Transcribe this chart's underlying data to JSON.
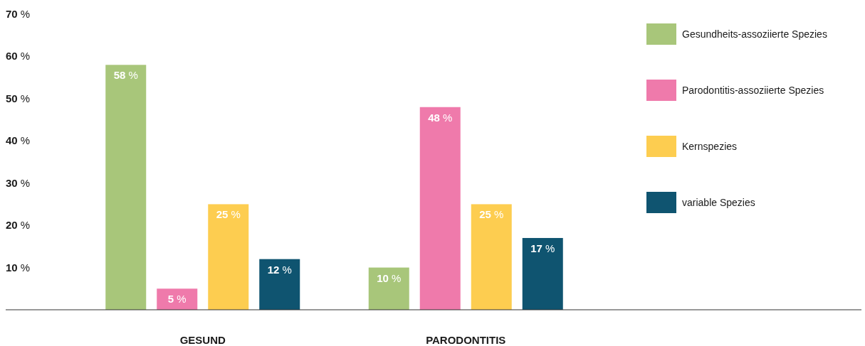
{
  "chart_data": {
    "type": "bar",
    "categories": [
      "GESUND",
      "PARODONTITIS"
    ],
    "series": [
      {
        "name": "Gesundheits-assoziierte Spezies",
        "color": "#a8c67a",
        "values": [
          58,
          10
        ],
        "value_labels": [
          "58 %",
          "10 %"
        ]
      },
      {
        "name": "Parodontitis-assoziierte Spezies",
        "color": "#ef7aab",
        "values": [
          5,
          48
        ],
        "value_labels": [
          "5 %",
          "48 %"
        ]
      },
      {
        "name": "Kernspezies",
        "color": "#fdcd50",
        "values": [
          25,
          25
        ],
        "value_labels": [
          "25 %",
          "25 %"
        ]
      },
      {
        "name": "variable Spezies",
        "color": "#0f5470",
        "values": [
          12,
          17
        ],
        "value_labels": [
          "12 %",
          "17 %"
        ]
      }
    ],
    "ylim": [
      0,
      70
    ],
    "yticks": [
      {
        "value": 10,
        "label": "10 %"
      },
      {
        "value": 20,
        "label": "20 %"
      },
      {
        "value": 30,
        "label": "30 %"
      },
      {
        "value": 40,
        "label": "40 %"
      },
      {
        "value": 50,
        "label": "50 %"
      },
      {
        "value": 60,
        "label": "60 %"
      },
      {
        "value": 70,
        "label": "70 %"
      }
    ],
    "legend": "top right"
  }
}
